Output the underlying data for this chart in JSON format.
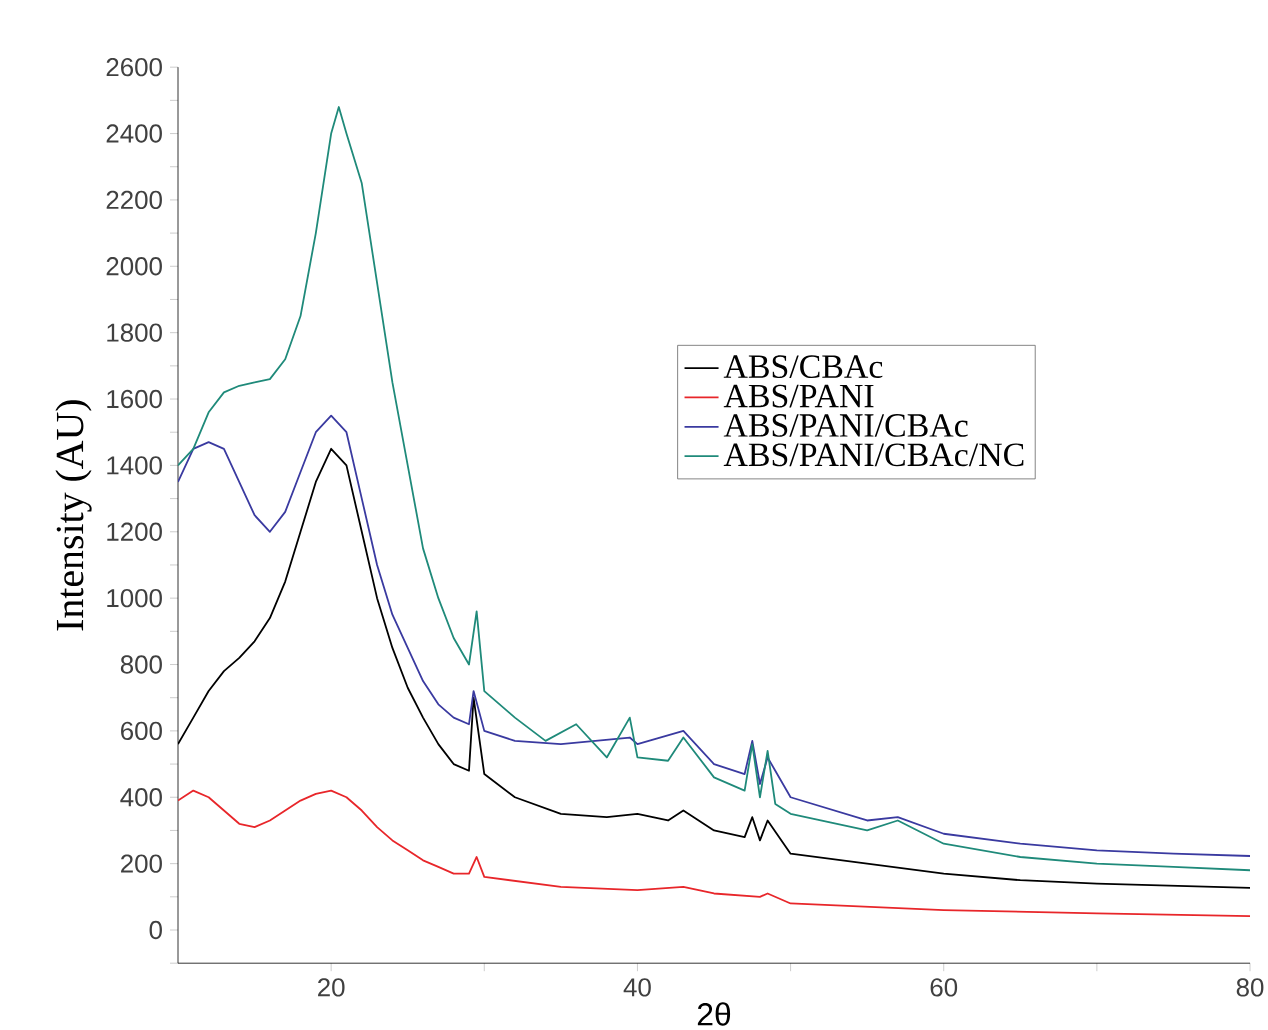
{
  "chart_data": {
    "type": "line",
    "xlabel": "2θ",
    "ylabel": "Intensity (AU)",
    "xlim": [
      10,
      80
    ],
    "ylim": [
      -100,
      2600
    ],
    "xticks": [
      20,
      {
        "value": 30,
        "label": null
      },
      40,
      {
        "value": 50,
        "label": null
      },
      60,
      {
        "value": 70,
        "label": null
      },
      80
    ],
    "yticks": [
      {
        "value": -100,
        "label": null
      },
      0,
      {
        "value": 100,
        "label": null
      },
      200,
      {
        "value": 300,
        "label": null
      },
      400,
      {
        "value": 500,
        "label": null
      },
      600,
      {
        "value": 700,
        "label": null
      },
      800,
      {
        "value": 900,
        "label": null
      },
      1000,
      {
        "value": 1100,
        "label": null
      },
      1200,
      {
        "value": 1300,
        "label": null
      },
      1400,
      {
        "value": 1500,
        "label": null
      },
      1600,
      {
        "value": 1700,
        "label": null
      },
      1800,
      {
        "value": 1900,
        "label": null
      },
      2000,
      {
        "value": 2100,
        "label": null
      },
      2200,
      {
        "value": 2300,
        "label": null
      },
      2400,
      {
        "value": 2500,
        "label": null
      },
      2600
    ],
    "grid": false,
    "legend": "right",
    "marker": "none",
    "line_style": "solid",
    "series": [
      {
        "name": "ABS/CBAc",
        "color": "#000000",
        "x": [
          10,
          11,
          12,
          13,
          14,
          15,
          16,
          17,
          18,
          19,
          20,
          21,
          22,
          23,
          24,
          25,
          26,
          27,
          28,
          29,
          29.3,
          30,
          32,
          35,
          38,
          40,
          42,
          43,
          45,
          47,
          47.5,
          48,
          48.5,
          50,
          55,
          60,
          65,
          70,
          80
        ],
        "values": [
          560,
          640,
          720,
          780,
          820,
          870,
          940,
          1050,
          1200,
          1350,
          1450,
          1400,
          1200,
          1000,
          850,
          730,
          640,
          560,
          500,
          480,
          700,
          470,
          400,
          350,
          340,
          350,
          330,
          360,
          300,
          280,
          340,
          270,
          330,
          230,
          200,
          170,
          150,
          140,
          127
        ]
      },
      {
        "name": "ABS/PANI",
        "color": "#e8262a",
        "x": [
          10,
          11,
          12,
          13,
          14,
          15,
          16,
          17,
          18,
          19,
          20,
          21,
          22,
          23,
          24,
          25,
          26,
          27,
          28,
          29,
          29.5,
          30,
          35,
          40,
          43,
          45,
          48,
          48.5,
          50,
          60,
          70,
          80
        ],
        "values": [
          390,
          420,
          400,
          360,
          320,
          310,
          330,
          360,
          390,
          410,
          420,
          400,
          360,
          310,
          270,
          240,
          210,
          190,
          170,
          170,
          220,
          160,
          130,
          120,
          130,
          110,
          100,
          110,
          80,
          60,
          50,
          42
        ]
      },
      {
        "name": "ABS/PANI/CBAc",
        "color": "#3a3aa0",
        "x": [
          10,
          11,
          12,
          13,
          14,
          15,
          16,
          17,
          18,
          19,
          20,
          21,
          22,
          23,
          24,
          25,
          26,
          27,
          28,
          29,
          29.3,
          30,
          32,
          35,
          39.5,
          40,
          43,
          45,
          47,
          47.5,
          48,
          48.5,
          50,
          55,
          57,
          60,
          65,
          70,
          75,
          80
        ],
        "values": [
          1350,
          1450,
          1470,
          1450,
          1350,
          1250,
          1200,
          1260,
          1380,
          1500,
          1550,
          1500,
          1300,
          1100,
          950,
          850,
          750,
          680,
          640,
          620,
          720,
          600,
          570,
          560,
          580,
          560,
          600,
          500,
          470,
          570,
          440,
          520,
          400,
          330,
          340,
          290,
          260,
          240,
          230,
          223
        ]
      },
      {
        "name": "ABS/PANI/CBAc/NC",
        "color": "#1f8a7a",
        "x": [
          10,
          11,
          12,
          13,
          14,
          15,
          16,
          17,
          18,
          19,
          20,
          20.5,
          21,
          22,
          23,
          24,
          25,
          26,
          27,
          28,
          29,
          29.5,
          30,
          32,
          34,
          36,
          38,
          39.5,
          40,
          42,
          43,
          45,
          47,
          47.5,
          48,
          48.5,
          49,
          50,
          55,
          57,
          60,
          65,
          70,
          75,
          80
        ],
        "values": [
          1400,
          1450,
          1560,
          1620,
          1640,
          1650,
          1660,
          1720,
          1850,
          2100,
          2400,
          2480,
          2400,
          2250,
          1950,
          1650,
          1400,
          1150,
          1000,
          880,
          800,
          960,
          720,
          640,
          570,
          620,
          520,
          640,
          520,
          510,
          580,
          460,
          420,
          560,
          400,
          540,
          380,
          350,
          300,
          330,
          260,
          220,
          200,
          190,
          180
        ]
      }
    ]
  }
}
